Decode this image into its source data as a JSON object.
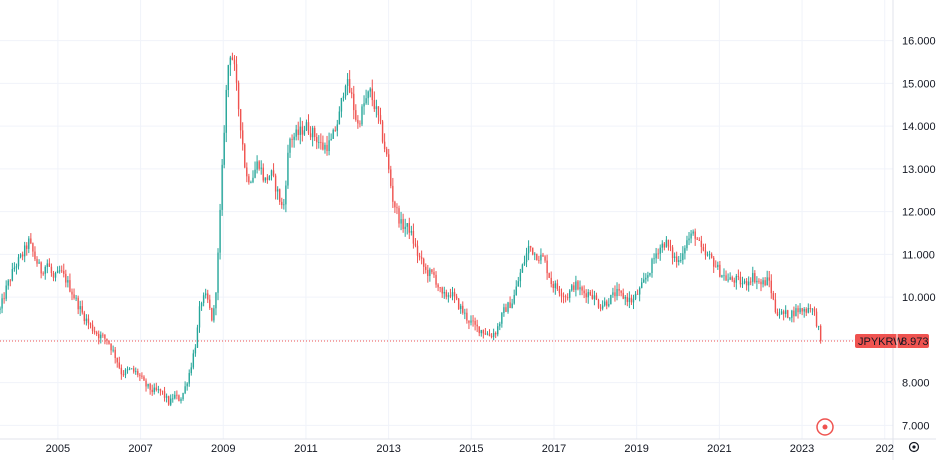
{
  "chart_data": {
    "type": "candlestick",
    "symbol": "JPYKRW",
    "last_price": "8.973",
    "y_ticks": [
      "7.000",
      "8.000",
      "9.000",
      "10.000",
      "11.000",
      "12.000",
      "13.000",
      "14.000",
      "15.000",
      "16.000"
    ],
    "x_ticks": [
      "2005",
      "2007",
      "2009",
      "2011",
      "2013",
      "2015",
      "2017",
      "2019",
      "2021",
      "2023",
      "202"
    ],
    "ylim": [
      6.68,
      16.95
    ],
    "xlim": [
      2003.6,
      2025.2
    ],
    "grid": true,
    "series": [
      {
        "values": [
          [
            2003.6,
            9.7
          ],
          [
            2003.75,
            10.2
          ],
          [
            2003.95,
            10.7
          ],
          [
            2004.15,
            11.0
          ],
          [
            2004.3,
            11.3
          ],
          [
            2004.45,
            10.9
          ],
          [
            2004.6,
            10.6
          ],
          [
            2004.75,
            10.8
          ],
          [
            2004.9,
            10.4
          ],
          [
            2005.05,
            10.6
          ],
          [
            2005.2,
            10.4
          ],
          [
            2005.4,
            10.0
          ],
          [
            2005.6,
            9.6
          ],
          [
            2005.8,
            9.3
          ],
          [
            2006.0,
            9.1
          ],
          [
            2006.2,
            9.0
          ],
          [
            2006.4,
            8.6
          ],
          [
            2006.55,
            8.2
          ],
          [
            2006.75,
            8.3
          ],
          [
            2006.95,
            8.2
          ],
          [
            2007.1,
            7.95
          ],
          [
            2007.3,
            7.8
          ],
          [
            2007.5,
            7.8
          ],
          [
            2007.7,
            7.5
          ],
          [
            2007.8,
            7.7
          ],
          [
            2007.95,
            7.6
          ],
          [
            2008.05,
            7.8
          ],
          [
            2008.2,
            8.3
          ],
          [
            2008.35,
            9.0
          ],
          [
            2008.45,
            9.9
          ],
          [
            2008.6,
            10.0
          ],
          [
            2008.75,
            9.4
          ],
          [
            2008.85,
            10.5
          ],
          [
            2008.95,
            12.5
          ],
          [
            2009.05,
            14.5
          ],
          [
            2009.15,
            15.8
          ],
          [
            2009.25,
            15.5
          ],
          [
            2009.35,
            14.6
          ],
          [
            2009.45,
            13.8
          ],
          [
            2009.55,
            12.8
          ],
          [
            2009.7,
            12.8
          ],
          [
            2009.85,
            13.2
          ],
          [
            2010.0,
            12.7
          ],
          [
            2010.15,
            12.9
          ],
          [
            2010.3,
            12.5
          ],
          [
            2010.45,
            12.0
          ],
          [
            2010.6,
            13.7
          ],
          [
            2010.8,
            13.8
          ],
          [
            2011.0,
            14.0
          ],
          [
            2011.2,
            13.8
          ],
          [
            2011.4,
            13.5
          ],
          [
            2011.6,
            13.6
          ],
          [
            2011.8,
            14.2
          ],
          [
            2011.95,
            15.1
          ],
          [
            2012.1,
            14.7
          ],
          [
            2012.25,
            14.0
          ],
          [
            2012.4,
            14.5
          ],
          [
            2012.55,
            14.8
          ],
          [
            2012.75,
            14.2
          ],
          [
            2012.95,
            13.3
          ],
          [
            2013.1,
            12.3
          ],
          [
            2013.3,
            11.7
          ],
          [
            2013.5,
            11.6
          ],
          [
            2013.7,
            11.0
          ],
          [
            2013.9,
            10.6
          ],
          [
            2014.1,
            10.5
          ],
          [
            2014.3,
            10.0
          ],
          [
            2014.5,
            10.1
          ],
          [
            2014.7,
            9.8
          ],
          [
            2014.9,
            9.5
          ],
          [
            2015.1,
            9.3
          ],
          [
            2015.3,
            9.2
          ],
          [
            2015.45,
            9.1
          ],
          [
            2015.6,
            9.2
          ],
          [
            2015.8,
            9.7
          ],
          [
            2016.0,
            9.9
          ],
          [
            2016.2,
            10.6
          ],
          [
            2016.4,
            11.2
          ],
          [
            2016.55,
            11.0
          ],
          [
            2016.75,
            10.9
          ],
          [
            2016.95,
            10.3
          ],
          [
            2017.1,
            10.2
          ],
          [
            2017.3,
            10.0
          ],
          [
            2017.5,
            10.3
          ],
          [
            2017.7,
            10.1
          ],
          [
            2017.9,
            10.1
          ],
          [
            2018.1,
            9.8
          ],
          [
            2018.3,
            9.9
          ],
          [
            2018.5,
            10.1
          ],
          [
            2018.7,
            10.0
          ],
          [
            2018.9,
            9.9
          ],
          [
            2019.1,
            10.2
          ],
          [
            2019.3,
            10.6
          ],
          [
            2019.5,
            11.1
          ],
          [
            2019.7,
            11.3
          ],
          [
            2019.85,
            11.0
          ],
          [
            2020.0,
            10.8
          ],
          [
            2020.2,
            11.3
          ],
          [
            2020.4,
            11.5
          ],
          [
            2020.6,
            11.0
          ],
          [
            2020.8,
            10.9
          ],
          [
            2021.0,
            10.6
          ],
          [
            2021.2,
            10.4
          ],
          [
            2021.4,
            10.4
          ],
          [
            2021.6,
            10.3
          ],
          [
            2021.8,
            10.5
          ],
          [
            2022.0,
            10.3
          ],
          [
            2022.2,
            10.4
          ],
          [
            2022.35,
            9.7
          ],
          [
            2022.5,
            9.6
          ],
          [
            2022.7,
            9.6
          ],
          [
            2022.9,
            9.7
          ],
          [
            2023.1,
            9.7
          ],
          [
            2023.2,
            9.8
          ],
          [
            2023.3,
            9.6
          ],
          [
            2023.4,
            9.25
          ],
          [
            2023.45,
            8.973
          ]
        ]
      }
    ],
    "colors": {
      "up": "#26a69a",
      "down": "#ef5350",
      "last_price_label": "#ef5350",
      "grid": "#f0f3fa",
      "text": "#131722"
    }
  }
}
